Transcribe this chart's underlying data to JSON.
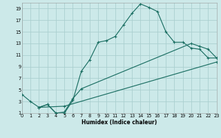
{
  "xlabel": "Humidex (Indice chaleur)",
  "xlim": [
    0,
    23
  ],
  "ylim": [
    1,
    20
  ],
  "xticks": [
    0,
    1,
    2,
    3,
    4,
    5,
    6,
    7,
    8,
    9,
    10,
    11,
    12,
    13,
    14,
    15,
    16,
    17,
    18,
    19,
    20,
    21,
    22,
    23
  ],
  "yticks": [
    1,
    3,
    5,
    7,
    9,
    11,
    13,
    15,
    17,
    19
  ],
  "bg_color": "#cce9e9",
  "grid_color": "#aacfcf",
  "line_color": "#1a6e62",
  "curve1_x": [
    0,
    1,
    2,
    3,
    4,
    5,
    6,
    7,
    8,
    9,
    10,
    11,
    12,
    13,
    14,
    15,
    16,
    17,
    18,
    19,
    20,
    21,
    22,
    23
  ],
  "curve1_y": [
    4.2,
    3.0,
    2.0,
    2.5,
    1.0,
    1.0,
    3.2,
    8.2,
    10.2,
    13.2,
    13.5,
    14.2,
    16.2,
    18.2,
    19.8,
    19.2,
    18.5,
    15.0,
    13.2,
    13.2,
    12.2,
    12.0,
    10.5,
    10.5
  ],
  "curve2_x": [
    2,
    3,
    4,
    5,
    6,
    7,
    20,
    21,
    22,
    23
  ],
  "curve2_y": [
    2.0,
    2.5,
    1.0,
    1.2,
    3.5,
    5.2,
    13.0,
    12.5,
    12.0,
    10.5
  ],
  "curve3_x": [
    2,
    5,
    23
  ],
  "curve3_y": [
    2.0,
    2.2,
    9.8
  ]
}
